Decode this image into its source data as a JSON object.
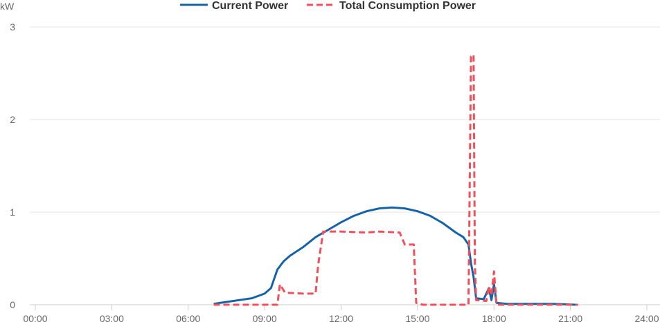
{
  "chart_data": {
    "type": "line",
    "ylabel": "kW",
    "xlim": [
      0,
      24
    ],
    "ylim": [
      0,
      3
    ],
    "x_ticks": [
      {
        "value": 0,
        "label": "00:00"
      },
      {
        "value": 3,
        "label": "03:00"
      },
      {
        "value": 6,
        "label": "06:00"
      },
      {
        "value": 9,
        "label": "09:00"
      },
      {
        "value": 12,
        "label": "12:00"
      },
      {
        "value": 15,
        "label": "15:00"
      },
      {
        "value": 18,
        "label": "18:00"
      },
      {
        "value": 21,
        "label": "21:00"
      },
      {
        "value": 24,
        "label": "24:00"
      }
    ],
    "y_ticks": [
      {
        "value": 0,
        "label": "0"
      },
      {
        "value": 1,
        "label": "1"
      },
      {
        "value": 2,
        "label": "2"
      },
      {
        "value": 3,
        "label": "3"
      }
    ],
    "grid": "horizontal",
    "legend_position": "top-center",
    "series": [
      {
        "name": "Current Power",
        "color": "#1463a8",
        "style": "solid",
        "points": [
          [
            7.0,
            0.01
          ],
          [
            7.5,
            0.03
          ],
          [
            8.0,
            0.05
          ],
          [
            8.5,
            0.07
          ],
          [
            9.0,
            0.12
          ],
          [
            9.25,
            0.18
          ],
          [
            9.5,
            0.38
          ],
          [
            9.75,
            0.47
          ],
          [
            10.0,
            0.53
          ],
          [
            10.5,
            0.62
          ],
          [
            11.0,
            0.73
          ],
          [
            11.5,
            0.81
          ],
          [
            12.0,
            0.89
          ],
          [
            12.5,
            0.96
          ],
          [
            13.0,
            1.01
          ],
          [
            13.5,
            1.04
          ],
          [
            14.0,
            1.05
          ],
          [
            14.5,
            1.04
          ],
          [
            15.0,
            1.01
          ],
          [
            15.5,
            0.96
          ],
          [
            16.0,
            0.88
          ],
          [
            16.5,
            0.78
          ],
          [
            16.8,
            0.73
          ],
          [
            17.0,
            0.65
          ],
          [
            17.1,
            0.45
          ],
          [
            17.2,
            0.3
          ],
          [
            17.3,
            0.07
          ],
          [
            17.6,
            0.06
          ],
          [
            17.8,
            0.18
          ],
          [
            17.9,
            0.05
          ],
          [
            18.0,
            0.22
          ],
          [
            18.1,
            0.02
          ],
          [
            18.5,
            0.01
          ],
          [
            20.3,
            0.01
          ],
          [
            21.2,
            0.0
          ]
        ]
      },
      {
        "name": "Total Consumption Power",
        "color": "#f0505a",
        "style": "dashed",
        "points": [
          [
            7.0,
            0.0
          ],
          [
            9.5,
            0.0
          ],
          [
            9.6,
            0.22
          ],
          [
            9.8,
            0.13
          ],
          [
            10.5,
            0.12
          ],
          [
            11.0,
            0.12
          ],
          [
            11.1,
            0.43
          ],
          [
            11.3,
            0.79
          ],
          [
            12.0,
            0.79
          ],
          [
            13.0,
            0.78
          ],
          [
            13.5,
            0.79
          ],
          [
            14.3,
            0.78
          ],
          [
            14.5,
            0.65
          ],
          [
            14.85,
            0.65
          ],
          [
            14.95,
            0.02
          ],
          [
            15.2,
            0.0
          ],
          [
            17.0,
            0.0
          ],
          [
            17.1,
            2.68
          ],
          [
            17.2,
            2.7
          ],
          [
            17.25,
            0.45
          ],
          [
            17.3,
            0.05
          ],
          [
            17.7,
            0.04
          ],
          [
            17.8,
            0.2
          ],
          [
            17.9,
            0.1
          ],
          [
            18.0,
            0.36
          ],
          [
            18.1,
            0.0
          ],
          [
            20.5,
            0.0
          ],
          [
            21.3,
            0.0
          ]
        ]
      }
    ]
  }
}
